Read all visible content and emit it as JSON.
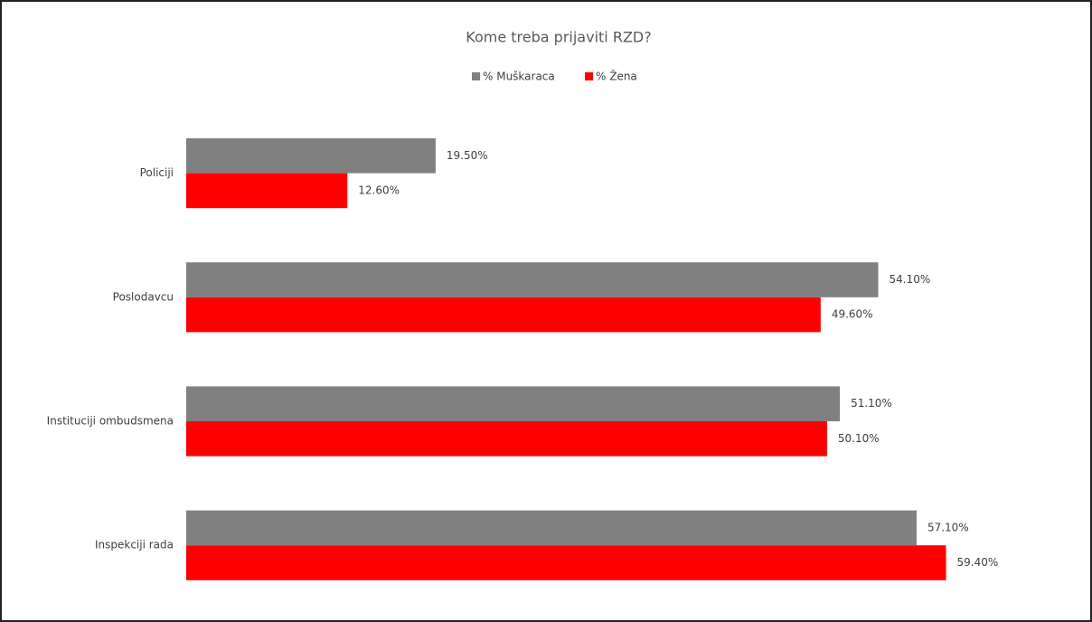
{
  "chart_data": {
    "type": "hbar",
    "title": "Kome treba prijaviti RZD?",
    "categories": [
      "Policiji",
      "Poslodavcu",
      "Instituciji ombudsmena",
      "Inspekciji rada"
    ],
    "series": [
      {
        "name": "% Muškaraca",
        "color": "#808080",
        "values": [
          19.5,
          54.1,
          51.1,
          57.1
        ],
        "value_labels": [
          "19.50%",
          "54.10%",
          "51.10%",
          "57.10%"
        ]
      },
      {
        "name": "% Žena",
        "color": "#ff0000",
        "values": [
          12.6,
          49.6,
          50.1,
          59.4
        ],
        "value_labels": [
          "12.60%",
          "49.60%",
          "50.10%",
          "59.40%"
        ]
      }
    ],
    "legend": "top"
  }
}
